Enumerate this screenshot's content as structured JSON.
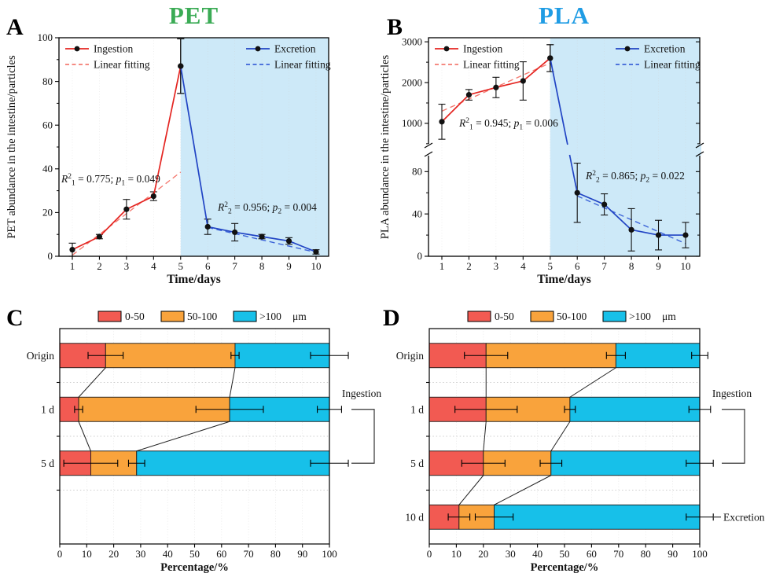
{
  "figure": {
    "background": "#ffffff"
  },
  "chart_data": [
    {
      "id": "A",
      "type": "line",
      "panel_label": "A",
      "title": "PET",
      "title_color": "#3bab55",
      "xlabel": "Time/days",
      "ylabel": "PET abundance in the intestine/particles",
      "xticks": [
        1,
        2,
        3,
        4,
        5,
        6,
        7,
        8,
        9,
        10
      ],
      "ylim": [
        0,
        100
      ],
      "yticks": [
        0,
        20,
        40,
        60,
        80,
        100
      ],
      "yticks_minor": [
        10,
        30,
        50,
        70,
        90
      ],
      "shade_from_x": 5,
      "shade_color": "#cde9f8",
      "legend": {
        "left": [
          {
            "label": "Ingestion",
            "color": "#e42521",
            "marker": true
          },
          {
            "label": "Linear fitting",
            "color": "#f47b72",
            "dash": true
          }
        ],
        "right": [
          {
            "label": "Excretion",
            "color": "#2144c4",
            "marker": true
          },
          {
            "label": "Linear fitting",
            "color": "#3c64d8",
            "dash": true
          }
        ]
      },
      "series": [
        {
          "name": "Ingestion",
          "color": "#e42521",
          "x": [
            1,
            2,
            3,
            4,
            5
          ],
          "y": [
            3,
            9,
            21.5,
            27.5,
            87
          ],
          "err": [
            3,
            1,
            4.5,
            2,
            12.5
          ]
        },
        {
          "name": "Excretion",
          "color": "#2144c4",
          "x": [
            5,
            6,
            7,
            8,
            9,
            10
          ],
          "y": [
            87,
            13.5,
            11,
            9,
            7,
            2
          ],
          "err": [
            12.5,
            3.5,
            4,
            1,
            1.5,
            1
          ]
        }
      ],
      "fits": [
        {
          "name": "Linear fitting",
          "color": "#f47b72",
          "x": [
            1,
            5
          ],
          "y": [
            0.5,
            38.5
          ]
        },
        {
          "name": "Linear fitting",
          "color": "#3c64d8",
          "x": [
            6,
            10
          ],
          "y": [
            13.2,
            1.8
          ]
        }
      ],
      "annotations": [
        {
          "tokens": [
            {
              "t": "R",
              "i": 1
            },
            {
              "t": "2",
              "sup": 1
            },
            {
              "t": "1",
              "sub": 1
            },
            {
              "t": " = 0.775; "
            },
            {
              "t": "p",
              "i": 1
            },
            {
              "t": "1",
              "sub": 1
            },
            {
              "t": " = 0.049"
            }
          ]
        },
        {
          "tokens": [
            {
              "t": "R",
              "i": 1
            },
            {
              "t": "2",
              "sup": 1
            },
            {
              "t": "2",
              "sub": 1
            },
            {
              "t": " = 0.956; "
            },
            {
              "t": "p",
              "i": 1
            },
            {
              "t": "2",
              "sub": 1
            },
            {
              "t": " = 0.004"
            }
          ]
        }
      ]
    },
    {
      "id": "B",
      "type": "line",
      "panel_label": "B",
      "title": "PLA",
      "title_color": "#1f9ce4",
      "xlabel": "Time/days",
      "ylabel": "PLA abundance in the intestine/particles",
      "xticks": [
        1,
        2,
        3,
        4,
        5,
        6,
        7,
        8,
        9,
        10
      ],
      "axis_segments": [
        {
          "lim": [
            0,
            95
          ],
          "ticks": [
            0,
            40,
            80
          ],
          "minor": [
            20,
            60
          ],
          "frac": [
            0,
            0.46
          ]
        },
        {
          "lim": [
            420,
            3100
          ],
          "ticks": [
            1000,
            2000,
            3000
          ],
          "minor": [
            500,
            1500,
            2500
          ],
          "frac": [
            0.5,
            1
          ]
        }
      ],
      "shade_from_x": 5,
      "shade_color": "#cde9f8",
      "legend": {
        "left": [
          {
            "label": "Ingestion",
            "color": "#e42521",
            "marker": true
          },
          {
            "label": "Linear fitting",
            "color": "#f47b72",
            "dash": true
          }
        ],
        "right": [
          {
            "label": "Excretion",
            "color": "#2144c4",
            "marker": true
          },
          {
            "label": "Linear fitting",
            "color": "#3c64d8",
            "dash": true
          }
        ]
      },
      "series": [
        {
          "name": "Ingestion",
          "color": "#e42521",
          "x": [
            1,
            2,
            3,
            4,
            5
          ],
          "y": [
            1040,
            1700,
            1880,
            2040,
            2600
          ],
          "err": [
            430,
            130,
            250,
            470,
            330
          ]
        },
        {
          "name": "Excretion",
          "color": "#2144c4",
          "x": [
            5,
            6,
            7,
            8,
            9,
            10
          ],
          "y": [
            2600,
            60,
            49,
            25,
            20,
            20
          ],
          "err": [
            330,
            28,
            10,
            20,
            14,
            12
          ]
        }
      ],
      "fits": [
        {
          "name": "Linear fitting",
          "color": "#f47b72",
          "x": [
            1,
            5
          ],
          "y": [
            1300,
            2480
          ]
        },
        {
          "name": "Linear fitting",
          "color": "#3c64d8",
          "x": [
            6,
            10
          ],
          "y": [
            57,
            12
          ]
        }
      ],
      "annotations": [
        {
          "tokens": [
            {
              "t": "R",
              "i": 1
            },
            {
              "t": "2",
              "sup": 1
            },
            {
              "t": "1",
              "sub": 1
            },
            {
              "t": " = 0.945; "
            },
            {
              "t": "p",
              "i": 1
            },
            {
              "t": "1",
              "sub": 1
            },
            {
              "t": " = 0.006"
            }
          ]
        },
        {
          "tokens": [
            {
              "t": "R",
              "i": 1
            },
            {
              "t": "2",
              "sup": 1
            },
            {
              "t": "2",
              "sub": 1
            },
            {
              "t": " = 0.865; "
            },
            {
              "t": "p",
              "i": 1
            },
            {
              "t": "2",
              "sub": 1
            },
            {
              "t": " = 0.022"
            }
          ]
        }
      ]
    },
    {
      "id": "C",
      "type": "stacked_bar_h",
      "panel_label": "C",
      "xlabel": "Percentage/%",
      "xticks": [
        0,
        10,
        20,
        30,
        40,
        50,
        60,
        70,
        80,
        90,
        100
      ],
      "n_slots": 4,
      "legend": {
        "items": [
          {
            "label": "0-50",
            "color": "#f25a52"
          },
          {
            "label": "50-100",
            "color": "#f9a33c"
          },
          {
            "label": ">100",
            "color": "#17c0e9"
          }
        ],
        "unit": "μm"
      },
      "rows": [
        {
          "label": "Origin",
          "values": [
            17,
            48,
            35
          ],
          "err": [
            6.5,
            1.5,
            7
          ]
        },
        {
          "label": "1 d",
          "values": [
            7,
            56,
            37
          ],
          "err": [
            1.5,
            12.5,
            4.5
          ]
        },
        {
          "label": "5 d",
          "values": [
            11.5,
            17,
            71.5
          ],
          "err": [
            10,
            3,
            7
          ]
        }
      ],
      "brackets": [
        {
          "label": "Ingestion",
          "rows": [
            1,
            2
          ]
        }
      ],
      "side_labels": []
    },
    {
      "id": "D",
      "type": "stacked_bar_h",
      "panel_label": "D",
      "xlabel": "Percentage/%",
      "xticks": [
        0,
        10,
        20,
        30,
        40,
        50,
        60,
        70,
        80,
        90,
        100
      ],
      "n_slots": 4,
      "legend": {
        "items": [
          {
            "label": "0-50",
            "color": "#f25a52"
          },
          {
            "label": "50-100",
            "color": "#f9a33c"
          },
          {
            "label": ">100",
            "color": "#17c0e9"
          }
        ],
        "unit": "μm"
      },
      "rows": [
        {
          "label": "Origin",
          "values": [
            21,
            48,
            31
          ],
          "err": [
            8,
            3.5,
            3
          ]
        },
        {
          "label": "1 d",
          "values": [
            21,
            31,
            48
          ],
          "err": [
            11.5,
            2,
            4
          ]
        },
        {
          "label": "5 d",
          "values": [
            20,
            25,
            55
          ],
          "err": [
            8,
            4,
            5
          ]
        },
        {
          "label": "10 d",
          "values": [
            11,
            13,
            76
          ],
          "err": [
            4,
            7,
            5
          ]
        }
      ],
      "brackets": [
        {
          "label": "Ingestion",
          "rows": [
            1,
            2
          ]
        }
      ],
      "side_labels": [
        {
          "label": "Excretion",
          "row": 3
        }
      ]
    }
  ]
}
